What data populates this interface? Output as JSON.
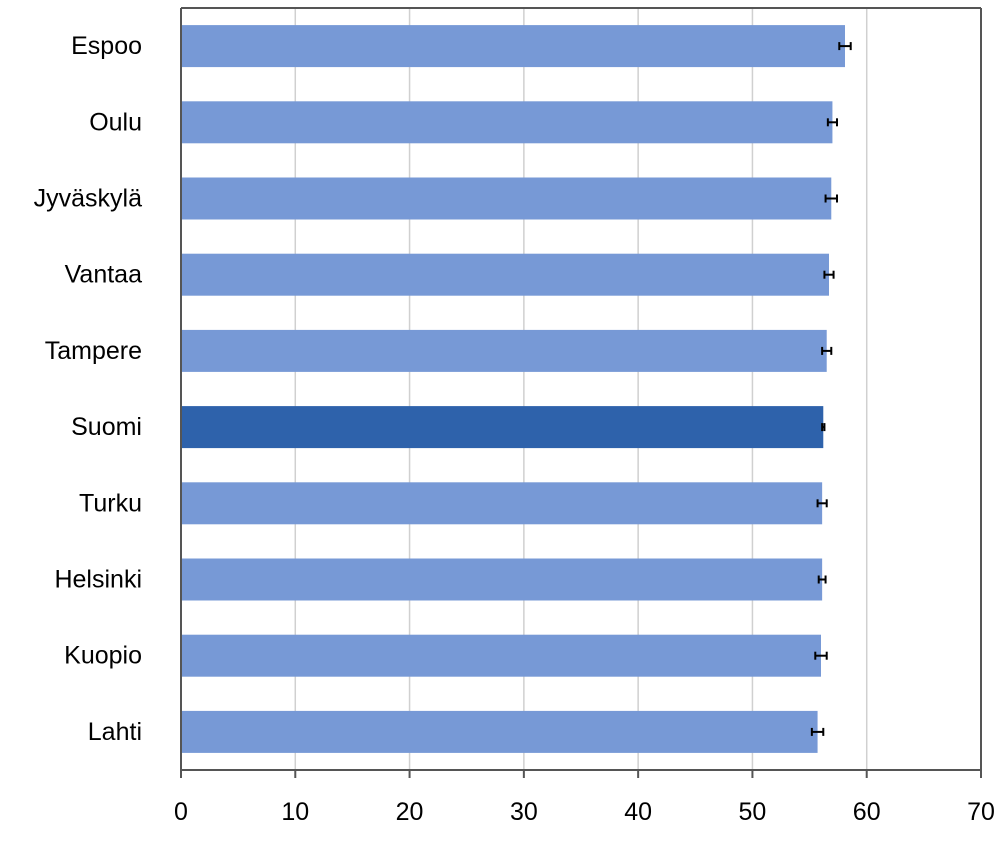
{
  "chart_data": {
    "type": "bar",
    "orientation": "horizontal",
    "categories": [
      "Espoo",
      "Oulu",
      "Jyväskylä",
      "Vantaa",
      "Tampere",
      "Suomi",
      "Turku",
      "Helsinki",
      "Kuopio",
      "Lahti"
    ],
    "values": [
      58.1,
      57.0,
      56.9,
      56.7,
      56.5,
      56.2,
      56.1,
      56.1,
      56.0,
      55.7
    ],
    "error": [
      0.5,
      0.4,
      0.5,
      0.4,
      0.4,
      0.1,
      0.4,
      0.3,
      0.5,
      0.5
    ],
    "highlight_category": "Suomi",
    "xlim": [
      0,
      70
    ],
    "xticks": [
      0,
      10,
      20,
      30,
      40,
      50,
      60,
      70
    ],
    "title": "",
    "xlabel": "",
    "ylabel": "",
    "grid": "vertical",
    "colors": {
      "bar": "#7799d6",
      "highlight": "#2e62ab",
      "grid": "#d0d0d0",
      "axis": "#555555",
      "error": "#000000"
    }
  }
}
